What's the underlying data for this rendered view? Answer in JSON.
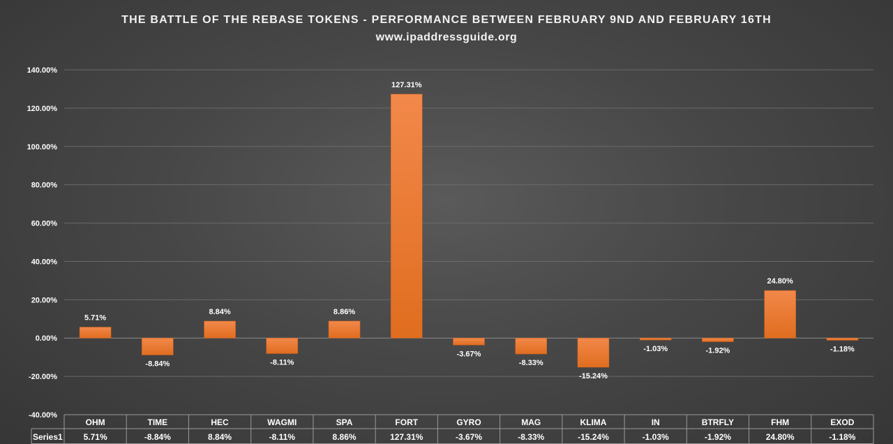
{
  "chart_data": {
    "type": "bar",
    "title": "THE BATTLE OF THE REBASE TOKENS - PERFORMANCE BETWEEN FEBRUARY 9ND AND FEBRUARY 16TH",
    "subtitle": "www.ipaddressguide.org",
    "categories": [
      "OHM",
      "TIME",
      "HEC",
      "WAGMI",
      "SPA",
      "FORT",
      "GYRO",
      "MAG",
      "KLIMA",
      "IN",
      "BTRFLY",
      "FHM",
      "EXOD"
    ],
    "series": [
      {
        "name": "Series1",
        "values": [
          5.71,
          -8.84,
          8.84,
          -8.11,
          8.86,
          127.31,
          -3.67,
          -8.33,
          -15.24,
          -1.03,
          -1.92,
          24.8,
          -1.18
        ],
        "labels": [
          "5.71%",
          "-8.84%",
          "8.84%",
          "-8.11%",
          "8.86%",
          "127.31%",
          "-3.67%",
          "-8.33%",
          "-15.24%",
          "-1.03%",
          "-1.92%",
          "24.80%",
          "-1.18%"
        ]
      }
    ],
    "y_ticks": [
      "140.00%",
      "120.00%",
      "100.00%",
      "80.00%",
      "60.00%",
      "40.00%",
      "20.00%",
      "0.00%",
      "-20.00%",
      "-40.00%"
    ],
    "ylim": [
      -40,
      140
    ],
    "grid": true,
    "data_table": true,
    "colors": {
      "bar_top": "#f2884a",
      "bar_bottom": "#e06d1f",
      "grid": "#6a6a6a",
      "table_border": "#9a9a9a"
    }
  }
}
